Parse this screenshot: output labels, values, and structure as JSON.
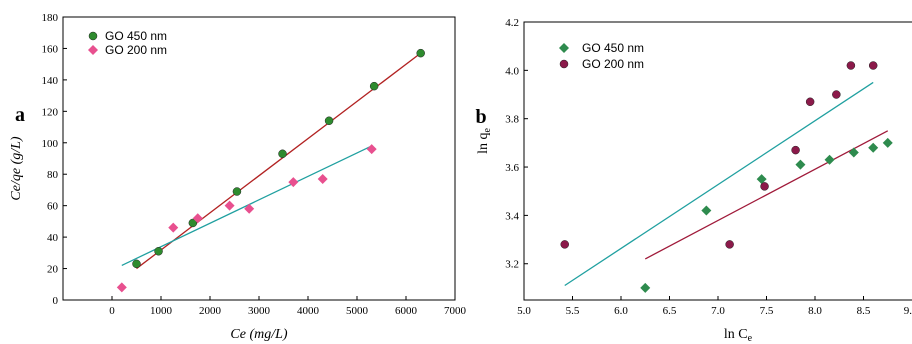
{
  "chart_data": [
    {
      "type": "scatter",
      "panel_label": "a",
      "xlabel_main": "Ce",
      "xlabel_unit": "(mg/L)",
      "ylabel": "Ce/qe (g/L)",
      "xlim": [
        -1000,
        7000
      ],
      "ylim": [
        0,
        180
      ],
      "xticks": [
        0,
        1000,
        2000,
        3000,
        4000,
        5000,
        6000,
        7000
      ],
      "yticks": [
        0,
        20,
        40,
        60,
        80,
        100,
        120,
        140,
        160,
        180
      ],
      "legend_position": "top-left",
      "series": [
        {
          "name": "GO 450 nm",
          "marker": "sphere",
          "color": "#2e8b2e",
          "x": [
            500,
            950,
            1650,
            2550,
            3480,
            4430,
            5350,
            6300
          ],
          "y": [
            23,
            31,
            49,
            69,
            93,
            114,
            136,
            157
          ]
        },
        {
          "name": "GO 200 nm",
          "marker": "diamond",
          "color": "#e8508f",
          "x": [
            200,
            1250,
            1750,
            2400,
            2800,
            3700,
            4300,
            5300
          ],
          "y": [
            8,
            46,
            52,
            60,
            58,
            75,
            77,
            96
          ]
        }
      ],
      "fit_lines": [
        {
          "color": "#b22222",
          "x": [
            500,
            6300
          ],
          "y": [
            20,
            157
          ]
        },
        {
          "color": "#20a0a0",
          "x": [
            200,
            5300
          ],
          "y": [
            22,
            98
          ]
        }
      ]
    },
    {
      "type": "scatter",
      "panel_label": "b",
      "xlabel_main": "ln C",
      "xlabel_sub": "e",
      "ylabel_main": "ln q",
      "ylabel_sub": "e",
      "xlim": [
        5.0,
        9.0
      ],
      "ylim": [
        3.05,
        4.2
      ],
      "xticks": [
        5.0,
        5.5,
        6.0,
        6.5,
        7.0,
        7.5,
        8.0,
        8.5
      ],
      "xtick_labels": [
        "5.0",
        "5.5",
        "6.0",
        "6.5",
        "7.0",
        "7.5",
        "8.0",
        "8.5"
      ],
      "yticks": [
        3.2,
        3.4,
        3.6,
        3.8,
        4.0,
        4.2
      ],
      "ytick_labels": [
        "3.2",
        "3.4",
        "3.6",
        "3.8",
        "4.0",
        "4.2"
      ],
      "edge_label": "9.",
      "legend_position": "top-left",
      "series": [
        {
          "name": "GO 450 nm",
          "marker": "diamond",
          "color": "#2e8b4e",
          "x": [
            6.25,
            6.88,
            7.45,
            7.85,
            8.15,
            8.4,
            8.6,
            8.75
          ],
          "y": [
            3.1,
            3.42,
            3.55,
            3.61,
            3.63,
            3.66,
            3.68,
            3.7
          ]
        },
        {
          "name": "GO 200 nm",
          "marker": "sphere",
          "color": "#8b1a4a",
          "x": [
            5.42,
            7.12,
            7.48,
            7.8,
            7.95,
            8.22,
            8.37,
            8.6
          ],
          "y": [
            3.28,
            3.28,
            3.52,
            3.67,
            3.87,
            3.9,
            4.02,
            4.02
          ]
        }
      ],
      "fit_lines": [
        {
          "color": "#a01a3a",
          "x": [
            6.25,
            8.75
          ],
          "y": [
            3.22,
            3.75
          ]
        },
        {
          "color": "#20a0a0",
          "x": [
            5.42,
            8.6
          ],
          "y": [
            3.11,
            3.95
          ]
        }
      ]
    }
  ]
}
